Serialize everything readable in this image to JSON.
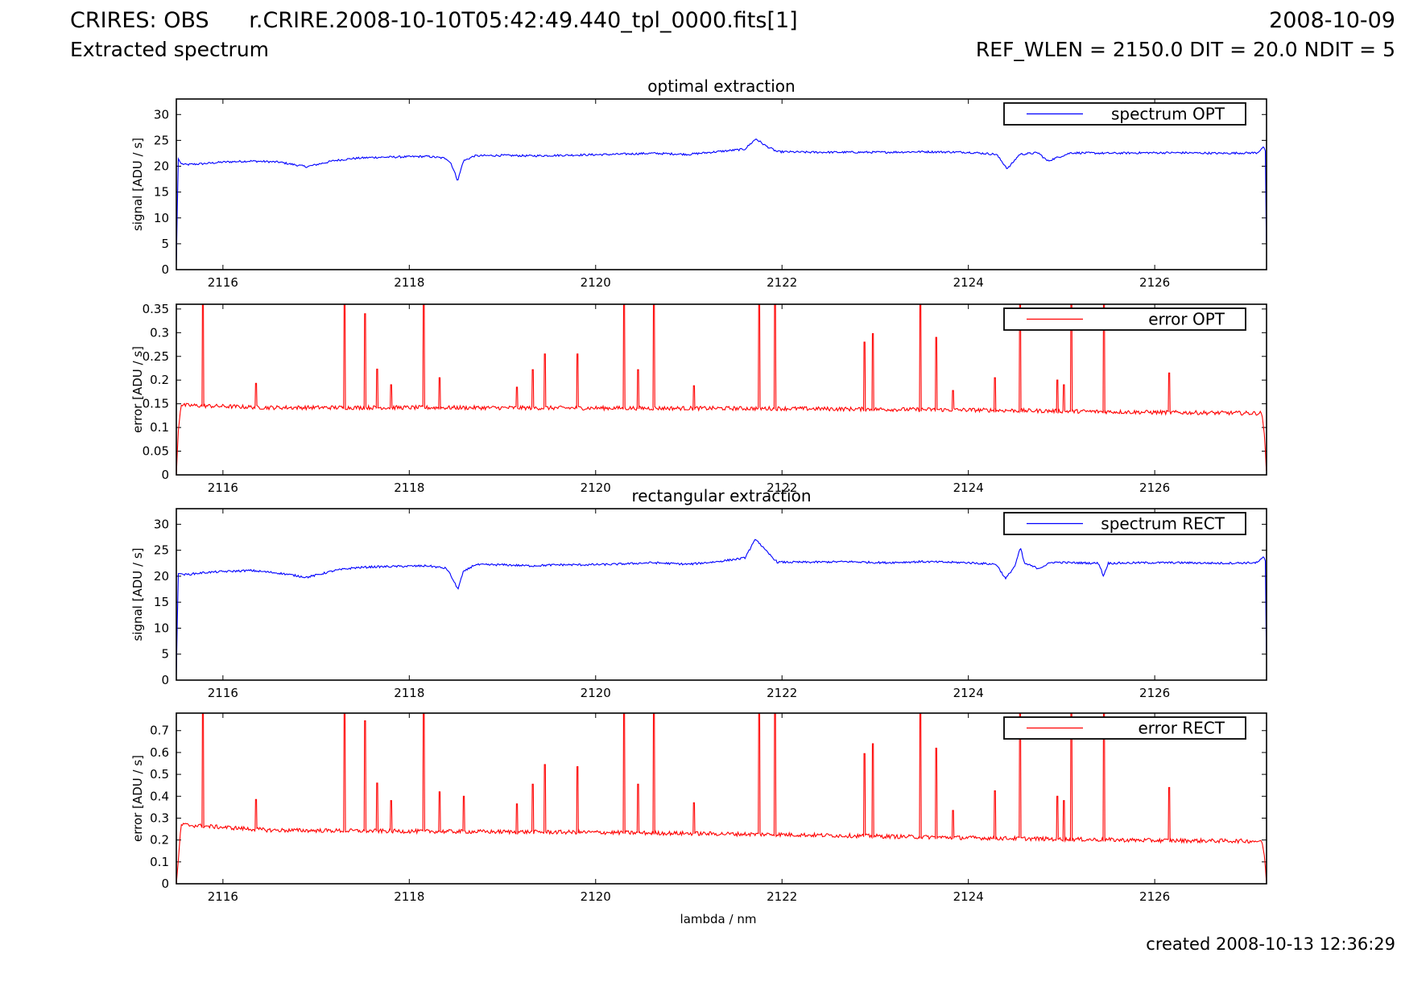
{
  "header": {
    "instrument": "CRIRES: OBS",
    "subtitle": "Extracted spectrum",
    "filename": "r.CRIRE.2008-10-10T05:42:49.440_tpl_0000.fits[1]",
    "date": "2008-10-09",
    "settings": "REF_WLEN = 2150.0 DIT = 20.0 NDIT = 5"
  },
  "footer": {
    "created": "created 2008-10-13 12:36:29",
    "xlabel": "lambda / nm"
  },
  "colors": {
    "blue": "#0000ff",
    "red": "#ff0000",
    "axis": "#000000"
  },
  "chart_data": [
    {
      "type": "line",
      "title": "optimal extraction",
      "ylabel": "signal [ADU / s]",
      "xlabel": "",
      "xlim": [
        2115.5,
        2127.2
      ],
      "ylim": [
        0,
        33
      ],
      "xticks": [
        "2116",
        "2118",
        "2120",
        "2122",
        "2124",
        "2126"
      ],
      "yticks": [
        "0",
        "5",
        "10",
        "15",
        "20",
        "25",
        "30"
      ],
      "legend": "top-right",
      "series": [
        {
          "name": "spectrum OPT",
          "color": "#0000ff",
          "x": [
            2115.5,
            2115.52,
            2115.55,
            2115.6,
            2115.8,
            2116.0,
            2116.3,
            2116.6,
            2116.9,
            2117.0,
            2117.2,
            2117.4,
            2117.6,
            2117.9,
            2118.2,
            2118.4,
            2118.45,
            2118.52,
            2118.58,
            2118.7,
            2119.0,
            2119.3,
            2119.6,
            2119.9,
            2120.2,
            2120.6,
            2121.0,
            2121.3,
            2121.6,
            2121.72,
            2121.82,
            2121.95,
            2122.3,
            2122.7,
            2123.1,
            2123.5,
            2124.0,
            2124.3,
            2124.42,
            2124.55,
            2124.75,
            2124.85,
            2125.1,
            2125.5,
            2125.9,
            2126.3,
            2126.7,
            2127.1,
            2127.17,
            2127.19,
            2127.2
          ],
          "y": [
            1,
            21.5,
            20.5,
            20.3,
            20.5,
            20.8,
            21.0,
            20.8,
            19.9,
            20.3,
            21.1,
            21.5,
            21.7,
            21.8,
            21.9,
            21.5,
            20.5,
            17.2,
            21.0,
            22.0,
            22.1,
            22.0,
            22.1,
            22.2,
            22.3,
            22.5,
            22.3,
            22.8,
            23.3,
            25.3,
            24.0,
            22.8,
            22.7,
            22.7,
            22.7,
            22.8,
            22.7,
            22.3,
            19.5,
            22.3,
            22.6,
            21.0,
            22.6,
            22.5,
            22.6,
            22.6,
            22.5,
            22.6,
            23.8,
            22.8,
            0.5
          ]
        }
      ]
    },
    {
      "type": "line",
      "title": "",
      "ylabel": "error [ADU / s]",
      "xlabel": "",
      "xlim": [
        2115.5,
        2127.2
      ],
      "ylim": [
        0,
        0.36
      ],
      "xticks": [
        "2116",
        "2118",
        "2120",
        "2122",
        "2124",
        "2126"
      ],
      "yticks": [
        "0",
        "0.05",
        "0.1",
        "0.15",
        "0.2",
        "0.25",
        "0.3",
        "0.35"
      ],
      "legend": "top-right",
      "series": [
        {
          "name": "error OPT",
          "color": "#ff0000",
          "x": [
            2115.5,
            2115.52,
            2115.55,
            2116.5,
            2118.0,
            2120.0,
            2122.0,
            2124.0,
            2126.0,
            2127.15,
            2127.18,
            2127.2
          ],
          "y": [
            0.0,
            0.09,
            0.147,
            0.142,
            0.142,
            0.141,
            0.14,
            0.137,
            0.132,
            0.13,
            0.08,
            0.0
          ],
          "spikes_x": [
            2115.78,
            2116.35,
            2117.3,
            2117.52,
            2117.65,
            2117.8,
            2118.15,
            2118.32,
            2119.15,
            2119.32,
            2119.45,
            2119.8,
            2120.3,
            2120.45,
            2120.62,
            2121.05,
            2121.75,
            2121.92,
            2122.88,
            2122.97,
            2123.48,
            2123.65,
            2123.83,
            2124.28,
            2124.55,
            2124.95,
            2125.02,
            2125.1,
            2125.45,
            2126.15
          ],
          "spikes_y": [
            0.36,
            0.193,
            0.36,
            0.34,
            0.223,
            0.19,
            0.36,
            0.205,
            0.185,
            0.222,
            0.255,
            0.255,
            0.36,
            0.222,
            0.36,
            0.188,
            0.36,
            0.36,
            0.28,
            0.298,
            0.36,
            0.29,
            0.178,
            0.205,
            0.36,
            0.2,
            0.19,
            0.36,
            0.36,
            0.215
          ]
        }
      ]
    },
    {
      "type": "line",
      "title": "rectangular extraction",
      "ylabel": "signal [ADU / s]",
      "xlabel": "",
      "xlim": [
        2115.5,
        2127.2
      ],
      "ylim": [
        0,
        33
      ],
      "xticks": [
        "2116",
        "2118",
        "2120",
        "2122",
        "2124",
        "2126"
      ],
      "yticks": [
        "0",
        "5",
        "10",
        "15",
        "20",
        "25",
        "30"
      ],
      "legend": "top-right",
      "series": [
        {
          "name": "spectrum RECT",
          "color": "#0000ff",
          "x": [
            2115.5,
            2115.52,
            2115.55,
            2115.6,
            2115.8,
            2116.0,
            2116.3,
            2116.6,
            2116.9,
            2117.0,
            2117.2,
            2117.4,
            2117.6,
            2117.9,
            2118.2,
            2118.4,
            2118.45,
            2118.52,
            2118.58,
            2118.7,
            2119.0,
            2119.3,
            2119.6,
            2119.9,
            2120.2,
            2120.6,
            2121.0,
            2121.3,
            2121.6,
            2121.72,
            2121.82,
            2121.95,
            2122.3,
            2122.7,
            2123.1,
            2123.5,
            2124.0,
            2124.3,
            2124.4,
            2124.5,
            2124.56,
            2124.6,
            2124.75,
            2124.9,
            2125.1,
            2125.4,
            2125.45,
            2125.5,
            2125.9,
            2126.3,
            2126.7,
            2127.1,
            2127.17,
            2127.19,
            2127.2
          ],
          "y": [
            1,
            20.5,
            20.5,
            20.3,
            20.7,
            20.9,
            21.1,
            20.6,
            19.8,
            20.2,
            21.1,
            21.6,
            21.8,
            21.9,
            22.0,
            21.5,
            20.0,
            17.5,
            20.8,
            22.2,
            22.2,
            22.0,
            22.2,
            22.2,
            22.3,
            22.6,
            22.3,
            22.8,
            23.5,
            27.2,
            25.0,
            22.7,
            22.7,
            22.8,
            22.6,
            22.8,
            22.6,
            22.3,
            19.5,
            22.0,
            25.5,
            22.5,
            21.5,
            22.7,
            22.6,
            22.5,
            20.0,
            22.5,
            22.6,
            22.6,
            22.5,
            22.6,
            23.8,
            22.8,
            0.5
          ]
        }
      ]
    },
    {
      "type": "line",
      "title": "",
      "ylabel": "error [ADU / s]",
      "xlabel": "lambda / nm",
      "xlim": [
        2115.5,
        2127.2
      ],
      "ylim": [
        0,
        0.78
      ],
      "xticks": [
        "2116",
        "2118",
        "2120",
        "2122",
        "2124",
        "2126"
      ],
      "yticks": [
        "0",
        "0.1",
        "0.2",
        "0.3",
        "0.4",
        "0.5",
        "0.6",
        "0.7"
      ],
      "legend": "top-right",
      "series": [
        {
          "name": "error RECT",
          "color": "#ff0000",
          "x": [
            2115.5,
            2115.52,
            2115.55,
            2116.5,
            2118.0,
            2120.0,
            2122.0,
            2124.0,
            2126.0,
            2127.15,
            2127.18,
            2127.2
          ],
          "y": [
            0.0,
            0.1,
            0.27,
            0.245,
            0.24,
            0.235,
            0.225,
            0.21,
            0.198,
            0.195,
            0.12,
            0.0
          ],
          "spikes_x": [
            2115.78,
            2116.35,
            2117.3,
            2117.52,
            2117.65,
            2117.8,
            2118.15,
            2118.32,
            2118.58,
            2119.15,
            2119.32,
            2119.45,
            2119.8,
            2120.3,
            2120.45,
            2120.62,
            2121.05,
            2121.75,
            2121.92,
            2122.88,
            2122.97,
            2123.48,
            2123.65,
            2123.83,
            2124.28,
            2124.55,
            2124.95,
            2125.02,
            2125.1,
            2125.45,
            2126.15
          ],
          "spikes_y": [
            0.78,
            0.385,
            0.78,
            0.745,
            0.46,
            0.38,
            0.78,
            0.42,
            0.4,
            0.365,
            0.455,
            0.545,
            0.535,
            0.78,
            0.455,
            0.78,
            0.37,
            0.78,
            0.78,
            0.595,
            0.64,
            0.78,
            0.62,
            0.335,
            0.425,
            0.78,
            0.4,
            0.38,
            0.78,
            0.78,
            0.44
          ]
        }
      ]
    }
  ]
}
